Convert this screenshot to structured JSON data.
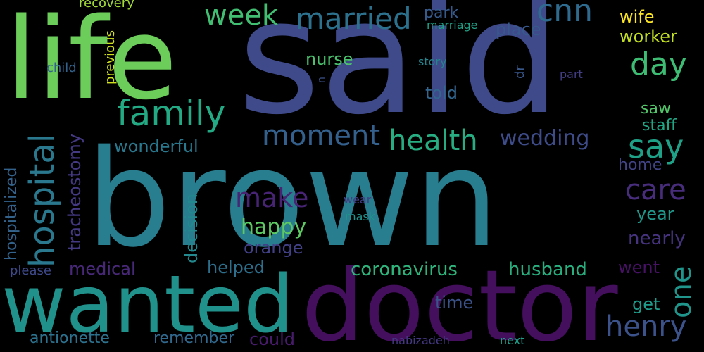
{
  "word_cloud": {
    "background": "#000000",
    "palette": [
      "#440154",
      "#482878",
      "#3e4989",
      "#31688e",
      "#26828e",
      "#1f9e89",
      "#35b779",
      "#6ece58",
      "#b5de2b",
      "#fde725"
    ],
    "words": [
      {
        "text": "said",
        "color": "#3f4a8a"
      },
      {
        "text": "brown",
        "color": "#287d8e"
      },
      {
        "text": "life",
        "color": "#6ccd5a"
      },
      {
        "text": "doctor",
        "color": "#440f5c"
      },
      {
        "text": "wanted",
        "color": "#21918c"
      },
      {
        "text": "family",
        "color": "#23a983"
      },
      {
        "text": "hospital",
        "color": "#2a788e"
      },
      {
        "text": "married",
        "color": "#2c728e"
      },
      {
        "text": "week",
        "color": "#41be71"
      },
      {
        "text": "cnn",
        "color": "#2f6b8e"
      },
      {
        "text": "day",
        "color": "#3dbc74"
      },
      {
        "text": "moment",
        "color": "#34608d"
      },
      {
        "text": "health",
        "color": "#27ad81"
      },
      {
        "text": "say",
        "color": "#1fa187"
      },
      {
        "text": "henry",
        "color": "#3b528b"
      },
      {
        "text": "care",
        "color": "#472d7b"
      },
      {
        "text": "make",
        "color": "#482475"
      },
      {
        "text": "happy",
        "color": "#5ec962"
      },
      {
        "text": "coronavirus",
        "color": "#2fb47c"
      },
      {
        "text": "husband",
        "color": "#29af7f"
      },
      {
        "text": "wedding",
        "color": "#3e4c8a"
      },
      {
        "text": "one",
        "color": "#1f958b"
      },
      {
        "text": "tracheostomy",
        "color": "#443983"
      },
      {
        "text": "hospitalized",
        "color": "#33638d"
      },
      {
        "text": "wonderful",
        "color": "#2a788e"
      },
      {
        "text": "medical",
        "color": "#482878"
      },
      {
        "text": "decision",
        "color": "#23898e"
      },
      {
        "text": "nurse",
        "color": "#4ac16d"
      },
      {
        "text": "told",
        "color": "#31668e"
      },
      {
        "text": "park",
        "color": "#375a8c"
      },
      {
        "text": "place",
        "color": "#38598c"
      },
      {
        "text": "wife",
        "color": "#fde725"
      },
      {
        "text": "worker",
        "color": "#c2df23"
      },
      {
        "text": "saw",
        "color": "#52c569"
      },
      {
        "text": "staff",
        "color": "#22a785"
      },
      {
        "text": "home",
        "color": "#414487"
      },
      {
        "text": "year",
        "color": "#1f988b"
      },
      {
        "text": "nearly",
        "color": "#46337e"
      },
      {
        "text": "went",
        "color": "#471164"
      },
      {
        "text": "get",
        "color": "#1e9b8a"
      },
      {
        "text": "orange",
        "color": "#424086"
      },
      {
        "text": "helped",
        "color": "#2d708e"
      },
      {
        "text": "time",
        "color": "#3b528b"
      },
      {
        "text": "antionette",
        "color": "#2c728e"
      },
      {
        "text": "remember",
        "color": "#31688e"
      },
      {
        "text": "could",
        "color": "#481b6d"
      },
      {
        "text": "recovery",
        "color": "#a2da37"
      },
      {
        "text": "previous",
        "color": "#d0e11c"
      },
      {
        "text": "child",
        "color": "#33638d"
      },
      {
        "text": "please",
        "color": "#3e4989"
      },
      {
        "text": "marriage",
        "color": "#1fa287"
      },
      {
        "text": "story",
        "color": "#25848e"
      },
      {
        "text": "dr",
        "color": "#38588c"
      },
      {
        "text": "part",
        "color": "#433e85"
      },
      {
        "text": "n",
        "color": "#3b528b"
      },
      {
        "text": "wear",
        "color": "#433d84"
      },
      {
        "text": "mask",
        "color": "#20928c"
      },
      {
        "text": "nabizadeh",
        "color": "#453882"
      },
      {
        "text": "next",
        "color": "#1f9e89"
      }
    ]
  }
}
